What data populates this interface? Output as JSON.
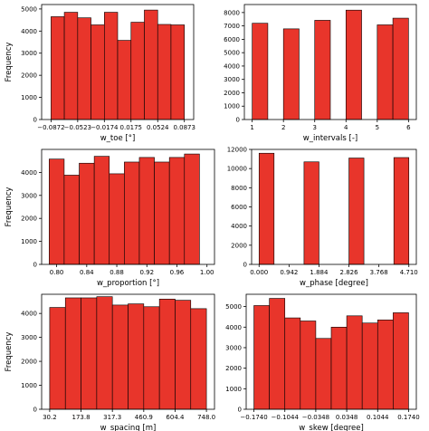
{
  "bar_color": "#e8352b",
  "edge_color": "#000000",
  "chart_data": [
    {
      "type": "bar",
      "xlabel": "w_toe [°]",
      "ylabel": "Frequency",
      "xlim": [
        -0.0995,
        0.0995
      ],
      "ylim": [
        0,
        5200
      ],
      "x_ticks": [
        -0.0872,
        -0.0523,
        -0.0174,
        0.0175,
        0.0524,
        0.0873
      ],
      "x_tick_labels": [
        "−0.0872",
        "−0.0523",
        "−0.0174",
        "0.0175",
        "0.0524",
        "0.0873"
      ],
      "y_ticks": [
        0,
        1000,
        2000,
        3000,
        4000,
        5000
      ],
      "y_tick_labels": [
        "0",
        "1000",
        "2000",
        "3000",
        "4000",
        "5000"
      ],
      "bins": [
        [
          -0.0872,
          -0.0698
        ],
        [
          -0.0698,
          -0.0523
        ],
        [
          -0.0523,
          -0.0349
        ],
        [
          -0.0349,
          -0.0174
        ],
        [
          -0.0174,
          0.0
        ],
        [
          0.0,
          0.0175
        ],
        [
          0.0175,
          0.0349
        ],
        [
          0.0349,
          0.0524
        ],
        [
          0.0524,
          0.0698
        ],
        [
          0.0698,
          0.0873
        ]
      ],
      "values": [
        4650,
        4850,
        4600,
        4280,
        4850,
        3580,
        4400,
        4950,
        4300,
        4280
      ]
    },
    {
      "type": "bar",
      "xlabel": "w_intervals [-]",
      "ylabel": "",
      "xlim": [
        0.75,
        6.25
      ],
      "ylim": [
        0,
        8600
      ],
      "x_ticks": [
        1,
        2,
        3,
        4,
        5,
        6
      ],
      "x_tick_labels": [
        "1",
        "2",
        "3",
        "4",
        "5",
        "6"
      ],
      "y_ticks": [
        0,
        1000,
        2000,
        3000,
        4000,
        5000,
        6000,
        7000,
        8000
      ],
      "y_tick_labels": [
        "0",
        "1000",
        "2000",
        "3000",
        "4000",
        "5000",
        "6000",
        "7000",
        "8000"
      ],
      "bins": [
        [
          1.0,
          1.5
        ],
        [
          2.0,
          2.5
        ],
        [
          3.0,
          3.5
        ],
        [
          4.0,
          4.5
        ],
        [
          5.0,
          5.5
        ],
        [
          5.5,
          6.0
        ]
      ],
      "values": [
        7200,
        6780,
        7420,
        8180,
        7080,
        7580
      ]
    },
    {
      "type": "bar",
      "xlabel": "w_proportion [°]",
      "ylabel": "Frequency",
      "xlim": [
        0.78,
        1.01
      ],
      "ylim": [
        0,
        5000
      ],
      "x_ticks": [
        0.8,
        0.84,
        0.88,
        0.92,
        0.96,
        1.0
      ],
      "x_tick_labels": [
        "0.80",
        "0.84",
        "0.88",
        "0.92",
        "0.96",
        "1.00"
      ],
      "y_ticks": [
        0,
        1000,
        2000,
        3000,
        4000
      ],
      "y_tick_labels": [
        "0",
        "1000",
        "2000",
        "3000",
        "4000"
      ],
      "bins": [
        [
          0.79,
          0.81
        ],
        [
          0.81,
          0.83
        ],
        [
          0.83,
          0.85
        ],
        [
          0.85,
          0.87
        ],
        [
          0.87,
          0.89
        ],
        [
          0.89,
          0.91
        ],
        [
          0.91,
          0.93
        ],
        [
          0.93,
          0.95
        ],
        [
          0.95,
          0.97
        ],
        [
          0.97,
          0.99
        ]
      ],
      "values": [
        4580,
        3880,
        4400,
        4700,
        3940,
        4450,
        4650,
        4450,
        4650,
        4800
      ]
    },
    {
      "type": "bar",
      "xlabel": "w_phase [degree]",
      "ylabel": "",
      "xlim": [
        -0.235,
        4.945
      ],
      "ylim": [
        0,
        12000
      ],
      "x_ticks": [
        0.0,
        0.942,
        1.884,
        2.826,
        3.768,
        4.71
      ],
      "x_tick_labels": [
        "0.000",
        "0.942",
        "1.884",
        "2.826",
        "3.768",
        "4.710"
      ],
      "y_ticks": [
        0,
        2000,
        4000,
        6000,
        8000,
        10000,
        12000
      ],
      "y_tick_labels": [
        "0",
        "2000",
        "4000",
        "6000",
        "8000",
        "10000",
        "12000"
      ],
      "bins": [
        [
          0.0,
          0.471
        ],
        [
          1.413,
          1.884
        ],
        [
          2.826,
          3.297
        ],
        [
          4.239,
          4.71
        ]
      ],
      "values": [
        11600,
        10700,
        11100,
        11150
      ]
    },
    {
      "type": "bar",
      "xlabel": "w_spacing [m]",
      "ylabel": "Frequency",
      "xlim": [
        -6.7,
        784.9
      ],
      "ylim": [
        0,
        4800
      ],
      "x_ticks": [
        30.2,
        173.8,
        317.3,
        460.9,
        604.4,
        748.0
      ],
      "x_tick_labels": [
        "30.2",
        "173.8",
        "317.3",
        "460.9",
        "604.4",
        "748.0"
      ],
      "y_ticks": [
        0,
        1000,
        2000,
        3000,
        4000
      ],
      "y_tick_labels": [
        "0",
        "1000",
        "2000",
        "3000",
        "4000"
      ],
      "bins": [
        [
          30.2,
          102.0
        ],
        [
          102.0,
          173.8
        ],
        [
          173.8,
          245.6
        ],
        [
          245.6,
          317.3
        ],
        [
          317.3,
          389.1
        ],
        [
          389.1,
          460.9
        ],
        [
          460.9,
          532.7
        ],
        [
          532.7,
          604.4
        ],
        [
          604.4,
          676.2
        ],
        [
          676.2,
          748.0
        ]
      ],
      "values": [
        4250,
        4650,
        4650,
        4700,
        4350,
        4400,
        4280,
        4600,
        4550,
        4200
      ]
    },
    {
      "type": "bar",
      "xlabel": "w_skew [degree]",
      "ylabel": "",
      "xlim": [
        -0.1914,
        0.1914
      ],
      "ylim": [
        0,
        5600
      ],
      "x_ticks": [
        -0.174,
        -0.1044,
        -0.0348,
        0.0348,
        0.1044,
        0.174
      ],
      "x_tick_labels": [
        "−0.1740",
        "−0.1044",
        "−0.0348",
        "0.0348",
        "0.1044",
        "0.1740"
      ],
      "y_ticks": [
        0,
        1000,
        2000,
        3000,
        4000,
        5000
      ],
      "y_tick_labels": [
        "0",
        "1000",
        "2000",
        "3000",
        "4000",
        "5000"
      ],
      "bins": [
        [
          -0.174,
          -0.1392
        ],
        [
          -0.1392,
          -0.1044
        ],
        [
          -0.1044,
          -0.0696
        ],
        [
          -0.0696,
          -0.0348
        ],
        [
          -0.0348,
          0.0
        ],
        [
          0.0,
          0.0348
        ],
        [
          0.0348,
          0.0696
        ],
        [
          0.0696,
          0.1044
        ],
        [
          0.1044,
          0.1392
        ],
        [
          0.1392,
          0.174
        ]
      ],
      "values": [
        5050,
        5400,
        4450,
        4300,
        3450,
        4000,
        4550,
        4200,
        4350,
        4700
      ]
    }
  ]
}
